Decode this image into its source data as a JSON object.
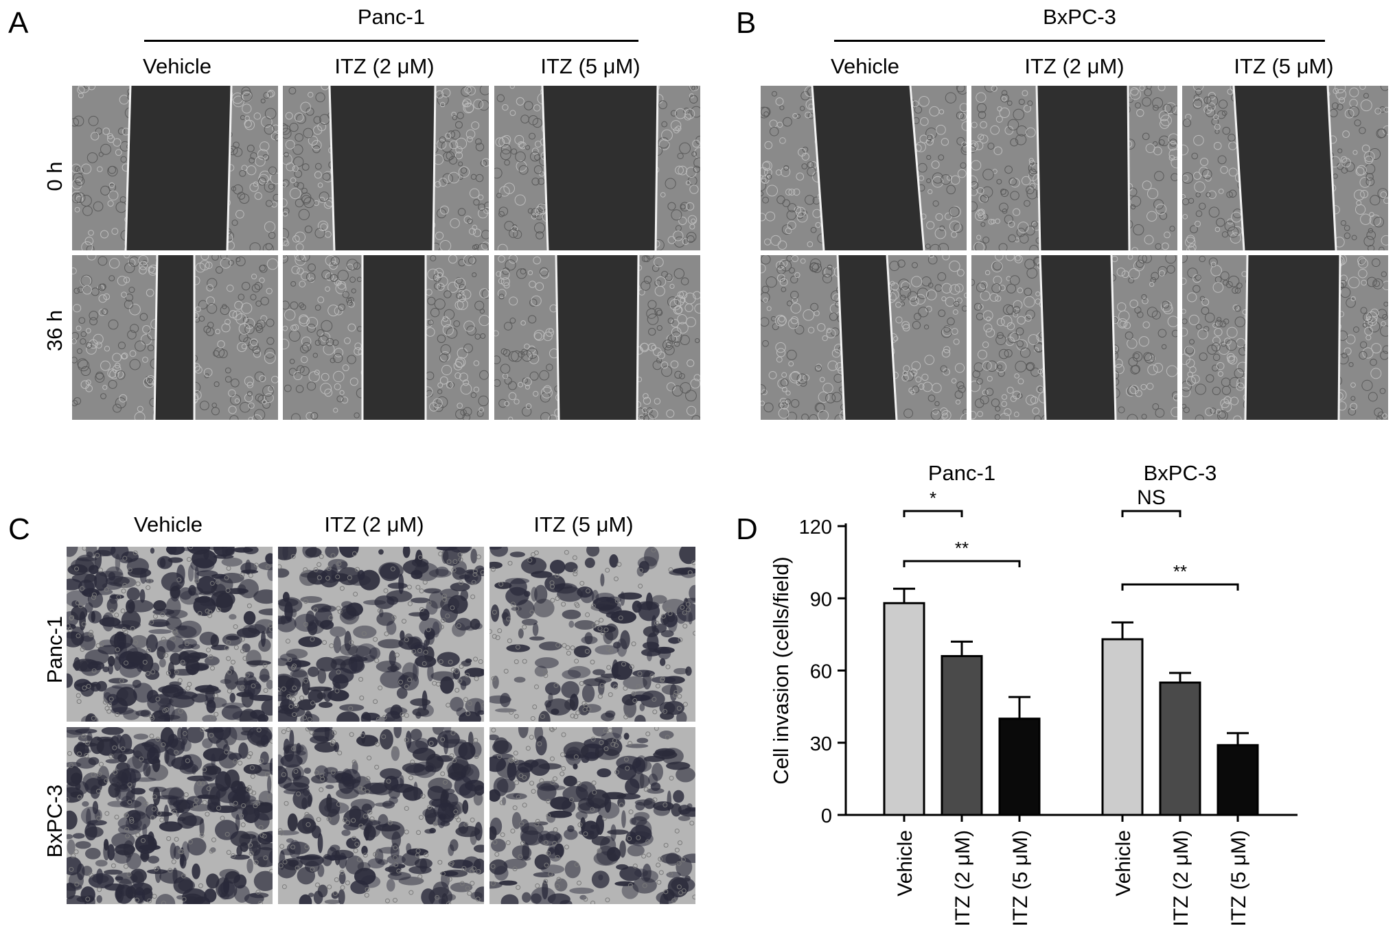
{
  "panels": {
    "A": {
      "letter": "A",
      "group": "Panc-1",
      "columns": [
        "Vehicle",
        "ITZ (2 μM)",
        "ITZ (5 μM)"
      ],
      "rows": [
        "0 h",
        "36 h"
      ]
    },
    "B": {
      "letter": "B",
      "group": "BxPC-3",
      "columns": [
        "Vehicle",
        "ITZ (2 μM)",
        "ITZ (5 μM)"
      ]
    },
    "C": {
      "letter": "C",
      "columns": [
        "Vehicle",
        "ITZ (2 μM)",
        "ITZ (5 μM)"
      ],
      "rows": [
        "Panc-1",
        "BxPC-3"
      ]
    },
    "D": {
      "letter": "D"
    }
  },
  "colors": {
    "vehicle_bar": "#cccccc",
    "itz2_bar": "#4a4a4a",
    "itz5_bar": "#0a0a0a",
    "wound_gap": "#2f2f2f",
    "cell_field": "#8a8a8a",
    "invasion_bg": "#b5b5b5",
    "invasion_cells": "#2a2a3a"
  },
  "chart_data": {
    "type": "bar",
    "ylabel": "Cell invasion (cells/field)",
    "ylim": [
      0,
      120
    ],
    "yticks": [
      0,
      30,
      60,
      90,
      120
    ],
    "groups": [
      {
        "name": "Panc-1",
        "categories": [
          "Vehicle",
          "ITZ (2 μM)",
          "ITZ (5 μM)"
        ],
        "values": [
          88,
          66,
          40
        ],
        "errors": [
          6,
          6,
          9
        ],
        "significance": [
          {
            "from": 0,
            "to": 1,
            "label": "*"
          },
          {
            "from": 0,
            "to": 2,
            "label": "**"
          }
        ]
      },
      {
        "name": "BxPC-3",
        "categories": [
          "Vehicle",
          "ITZ (2 μM)",
          "ITZ (5 μM)"
        ],
        "values": [
          73,
          55,
          29
        ],
        "errors": [
          7,
          4,
          5
        ],
        "significance": [
          {
            "from": 0,
            "to": 1,
            "label": "NS"
          },
          {
            "from": 0,
            "to": 2,
            "label": "**"
          }
        ]
      }
    ],
    "grid": false,
    "legend": "none"
  }
}
